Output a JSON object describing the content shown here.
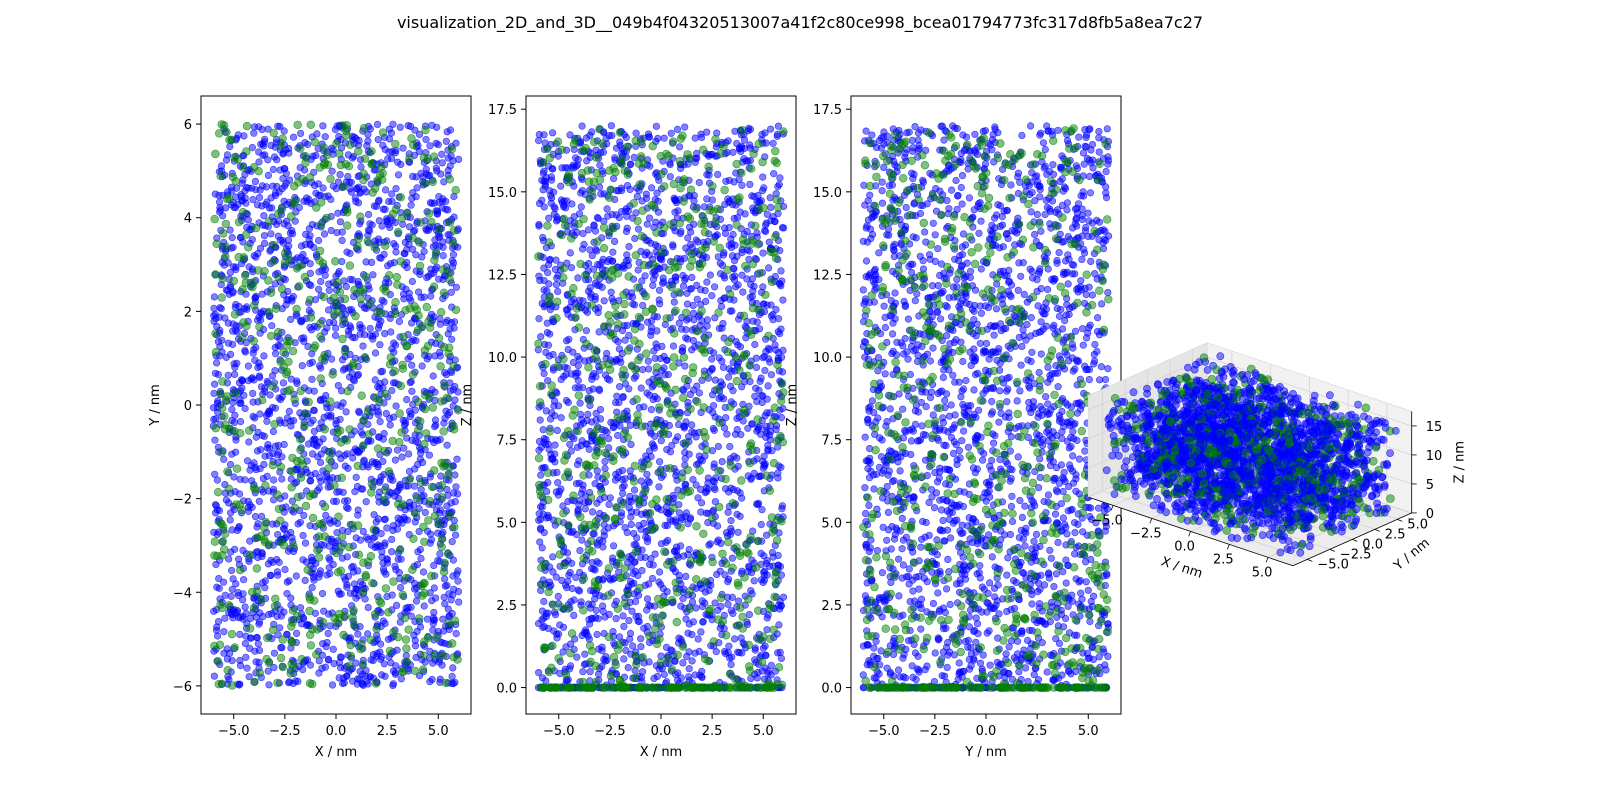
{
  "figure_title": "visualization_2D_and_3D__049b4f04320513007a41f2c80ce998_bcea01794773fc317d8fb5a8ea7c27",
  "colors": {
    "species_a": "#0000ff",
    "species_b": "#008000",
    "axes": "#000000",
    "pane": "#ececec"
  },
  "chart_data": [
    {
      "type": "scatter",
      "xlabel": "X / nm",
      "ylabel": "Y / nm",
      "xlim": [
        -6.6,
        6.6
      ],
      "ylim": [
        -6.6,
        6.6
      ],
      "xticks": [
        -5.0,
        -2.5,
        0.0,
        2.5,
        5.0
      ],
      "xtick_labels": [
        "−5.0",
        "−2.5",
        "0.0",
        "2.5",
        "5.0"
      ],
      "yticks": [
        -6,
        -4,
        -2,
        0,
        2,
        4,
        6
      ],
      "ytick_labels": [
        "−6",
        "−4",
        "−2",
        "0",
        "2",
        "4",
        "6"
      ],
      "series": [
        {
          "color": "#0000ff",
          "marker": "circle",
          "alpha": 0.5,
          "approx_points": 2200,
          "x_range": [
            -6.0,
            6.0
          ],
          "y_range": [
            -6.0,
            6.0
          ]
        },
        {
          "color": "#008000",
          "marker": "circle",
          "alpha": 0.5,
          "approx_points": 550,
          "x_range": [
            -6.0,
            6.0
          ],
          "y_range": [
            -6.0,
            6.0
          ]
        }
      ],
      "grid": false
    },
    {
      "type": "scatter",
      "xlabel": "X / nm",
      "ylabel": "Z / nm",
      "xlim": [
        -6.6,
        6.6
      ],
      "ylim": [
        -0.8,
        17.9
      ],
      "xticks": [
        -5.0,
        -2.5,
        0.0,
        2.5,
        5.0
      ],
      "xtick_labels": [
        "−5.0",
        "−2.5",
        "0.0",
        "2.5",
        "5.0"
      ],
      "yticks": [
        0.0,
        2.5,
        5.0,
        7.5,
        10.0,
        12.5,
        15.0,
        17.5
      ],
      "ytick_labels": [
        "0.0",
        "2.5",
        "5.0",
        "7.5",
        "10.0",
        "12.5",
        "15.0",
        "17.5"
      ],
      "series": [
        {
          "color": "#0000ff",
          "marker": "circle",
          "alpha": 0.5,
          "approx_points": 2200,
          "x_range": [
            -6.0,
            6.0
          ],
          "y_range": [
            0.0,
            17.0
          ],
          "layer_at_zero": true
        },
        {
          "color": "#008000",
          "marker": "circle",
          "alpha": 0.5,
          "approx_points": 550,
          "x_range": [
            -6.0,
            6.0
          ],
          "y_range": [
            0.0,
            17.0
          ],
          "layer_at_zero": true
        }
      ],
      "grid": false
    },
    {
      "type": "scatter",
      "xlabel": "Y / nm",
      "ylabel": "Z / nm",
      "xlim": [
        -6.6,
        6.6
      ],
      "ylim": [
        -0.8,
        17.9
      ],
      "xticks": [
        -5.0,
        -2.5,
        0.0,
        2.5,
        5.0
      ],
      "xtick_labels": [
        "−5.0",
        "−2.5",
        "0.0",
        "2.5",
        "5.0"
      ],
      "yticks": [
        0.0,
        2.5,
        5.0,
        7.5,
        10.0,
        12.5,
        15.0,
        17.5
      ],
      "ytick_labels": [
        "0.0",
        "2.5",
        "5.0",
        "7.5",
        "10.0",
        "12.5",
        "15.0",
        "17.5"
      ],
      "series": [
        {
          "color": "#0000ff",
          "marker": "circle",
          "alpha": 0.5,
          "approx_points": 2200,
          "x_range": [
            -6.0,
            6.0
          ],
          "y_range": [
            0.0,
            17.0
          ],
          "layer_at_zero": true
        },
        {
          "color": "#008000",
          "marker": "circle",
          "alpha": 0.5,
          "approx_points": 550,
          "x_range": [
            -6.0,
            6.0
          ],
          "y_range": [
            0.0,
            17.0
          ],
          "layer_at_zero": true
        }
      ],
      "grid": false
    },
    {
      "type": "scatter",
      "projection": "3d",
      "xlabel": "X / nm",
      "ylabel": "Y / nm",
      "zlabel": "Z / nm",
      "xlim": [
        -6.6,
        6.6
      ],
      "ylim": [
        -6.6,
        6.6
      ],
      "zlim": [
        0,
        17.5
      ],
      "xtick_labels": [
        "−5.0",
        "−2.5",
        "0.0",
        "2.5",
        "5.0"
      ],
      "ytick_labels": [
        "−5.0",
        "−2.5",
        "0.0",
        "2.5",
        "5.0"
      ],
      "ztick_labels": [
        "0",
        "5",
        "10",
        "15"
      ],
      "series": [
        {
          "color": "#0000ff",
          "marker": "circle",
          "alpha": 0.5,
          "approx_points": 2200
        },
        {
          "color": "#008000",
          "marker": "circle",
          "alpha": 0.5,
          "approx_points": 550
        }
      ],
      "grid": true
    }
  ]
}
